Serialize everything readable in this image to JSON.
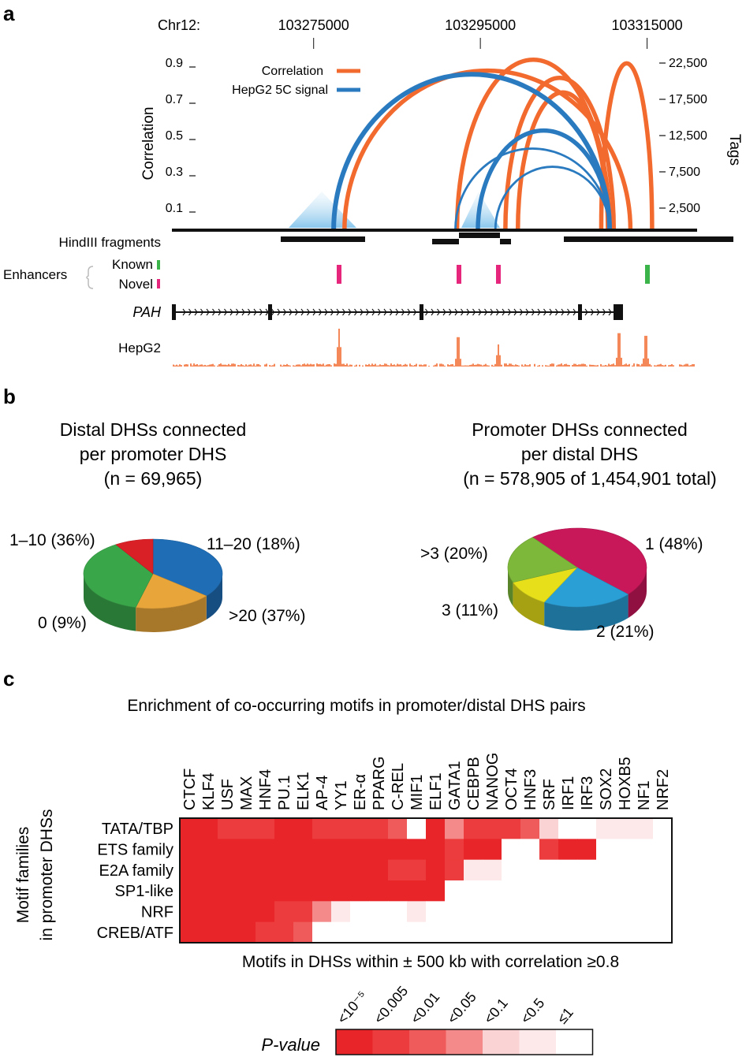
{
  "panels": {
    "a": {
      "letter": "a",
      "chr_label": "Chr12:",
      "positions": [
        "103275000",
        "103295000",
        "103315000"
      ],
      "y_left_label": "Correlation",
      "y_left_ticks": [
        "0.9",
        "0.7",
        "0.5",
        "0.3",
        "0.1"
      ],
      "y_right_label": "Tags",
      "y_right_ticks": [
        "22,500",
        "17,500",
        "12,500",
        "7,500",
        "2,500"
      ],
      "legend": [
        {
          "label": "Correlation",
          "color": "#f26a2e"
        },
        {
          "label": "HepG2 5C signal",
          "color": "#2a7ac0"
        }
      ],
      "tracks": {
        "hindiii": "HindIII fragments",
        "enhancers": "Enhancers",
        "known": "Known",
        "novel": "Novel",
        "gene": "PAH",
        "hepg2": "HepG2"
      },
      "colors": {
        "known": "#3bb54a",
        "novel": "#e6267d",
        "signal": "#f26a2e"
      }
    },
    "b": {
      "letter": "b",
      "left": {
        "title_lines": [
          "Distal DHSs connected",
          "per promoter DHS"
        ],
        "n_text": "(n = 69,965)",
        "slices": [
          {
            "label": "1–10 (36%)",
            "value": 36,
            "color": "#1f6db5"
          },
          {
            "label": "11–20 (18%)",
            "value": 18,
            "color": "#e8a53a"
          },
          {
            "label": ">20 (37%)",
            "value": 37,
            "color": "#3aa64a"
          },
          {
            "label": "0 (9%)",
            "value": 9,
            "color": "#d92027"
          }
        ]
      },
      "right": {
        "title_lines": [
          "Promoter DHSs connected",
          "per distal DHS"
        ],
        "n_text": "(n = 578,905 of 1,454,901 total)",
        "slices": [
          {
            "label": "1 (48%)",
            "value": 48,
            "color": "#c8185a"
          },
          {
            "label": "2 (21%)",
            "value": 21,
            "color": "#2a9fd6"
          },
          {
            "label": "3 (11%)",
            "value": 11,
            "color": "#e6df1a"
          },
          {
            "label": ">3 (20%)",
            "value": 20,
            "color": "#7db83a"
          }
        ]
      }
    },
    "c": {
      "letter": "c",
      "title": "Enrichment of co-occurring motifs in promoter/distal DHS pairs",
      "ylabel_lines": [
        "Motif families",
        "in promoter DHSs"
      ],
      "xlabel": "Motifs in DHSs within ± 500 kb with correlation ≥0.8",
      "legend_title": "P-value",
      "legend_bins": [
        "<10⁻⁵",
        "<0.005",
        "<0.01",
        "<0.05",
        "<0.1",
        "<0.5",
        "≤1"
      ],
      "legend_colors": [
        "#e8262a",
        "#ec3c3d",
        "#ef5a5a",
        "#f48a8a",
        "#fad3d5",
        "#fde8ea",
        "#ffffff"
      ]
    }
  },
  "chart_data": [
    {
      "type": "line",
      "title": "",
      "xlabel": "Chr12:",
      "ylabel": "Correlation",
      "y2label": "Tags",
      "xlim": [
        103258000,
        103321000
      ],
      "ylim": [
        0,
        1
      ],
      "series": [
        {
          "name": "Correlation",
          "arcs": [
            [
              103278700,
              103313000,
              0.88
            ],
            [
              103292200,
              103310500,
              0.94
            ],
            [
              103299500,
              103310300,
              0.76
            ],
            [
              103309500,
              103315600,
              0.92
            ],
            [
              103298000,
              103311000,
              0.84
            ]
          ]
        },
        {
          "name": "HepG2 5C signal",
          "arcs": [
            [
              103277400,
              103310500,
              0.86
            ],
            [
              103292000,
              103310500,
              0.45
            ],
            [
              103294700,
              103310500,
              0.55
            ],
            [
              103296800,
              103310500,
              0.35
            ]
          ]
        }
      ],
      "enhancers": {
        "known": [
          103316000
        ],
        "novel": [
          103278500,
          103292000,
          103296500
        ]
      }
    },
    {
      "type": "pie",
      "title": "Distal DHSs connected per promoter DHS",
      "categories": [
        "1–10",
        "11–20",
        ">20",
        "0"
      ],
      "values": [
        36,
        18,
        37,
        9
      ]
    },
    {
      "type": "pie",
      "title": "Promoter DHSs connected per distal DHS",
      "categories": [
        "1",
        "2",
        "3",
        ">3"
      ],
      "values": [
        48,
        21,
        11,
        20
      ]
    },
    {
      "type": "heatmap",
      "title": "Enrichment of co-occurring motifs in promoter/distal DHS pairs",
      "xlabel": "Motifs in DHSs within ± 500 kb with correlation ≥0.8",
      "ylabel": "Motif families in promoter DHSs",
      "x": [
        "CTCF",
        "KLF4",
        "USF",
        "MAX",
        "HNF4",
        "PU.1",
        "ELK1",
        "AP-4",
        "YY1",
        "ER-α",
        "PPARG",
        "C-REL",
        "MIF1",
        "ELF1",
        "GATA1",
        "CEBPB",
        "NANOG",
        "OCT4",
        "HNF3",
        "SRF",
        "IRF1",
        "IRF3",
        "SOX2",
        "HOXB5",
        "NF1",
        "NRF2"
      ],
      "y": [
        "TATA/TBP",
        "ETS family",
        "E2A family",
        "SP1-like",
        "NRF",
        "CREB/ATF"
      ],
      "value_meaning": "P-value bin index: 0 <10^-5, 1 <0.005, 2 <0.01, 3 <0.05, 4 <0.1, 5 <0.5, 6 ≤1",
      "values": [
        [
          0,
          0,
          1,
          1,
          1,
          0,
          0,
          1,
          1,
          1,
          1,
          2,
          6,
          0,
          3,
          1,
          1,
          1,
          2,
          4,
          6,
          6,
          5,
          5,
          5,
          6
        ],
        [
          0,
          0,
          0,
          0,
          0,
          0,
          0,
          0,
          0,
          0,
          0,
          0,
          0,
          0,
          1,
          0,
          0,
          6,
          6,
          1,
          0,
          0,
          6,
          6,
          6,
          6
        ],
        [
          0,
          0,
          0,
          0,
          0,
          0,
          0,
          0,
          0,
          0,
          0,
          1,
          1,
          0,
          1,
          5,
          5,
          6,
          6,
          6,
          6,
          6,
          6,
          6,
          6,
          6
        ],
        [
          0,
          0,
          0,
          0,
          0,
          0,
          0,
          0,
          0,
          0,
          0,
          0,
          0,
          0,
          6,
          6,
          6,
          6,
          6,
          6,
          6,
          6,
          6,
          6,
          6,
          6
        ],
        [
          0,
          0,
          0,
          0,
          0,
          1,
          1,
          3,
          5,
          6,
          6,
          6,
          5,
          6,
          6,
          6,
          6,
          6,
          6,
          6,
          6,
          6,
          6,
          6,
          6,
          6
        ],
        [
          0,
          0,
          0,
          0,
          1,
          1,
          2,
          6,
          6,
          6,
          6,
          6,
          6,
          6,
          6,
          6,
          6,
          6,
          6,
          6,
          6,
          6,
          6,
          6,
          6,
          6
        ]
      ]
    }
  ]
}
